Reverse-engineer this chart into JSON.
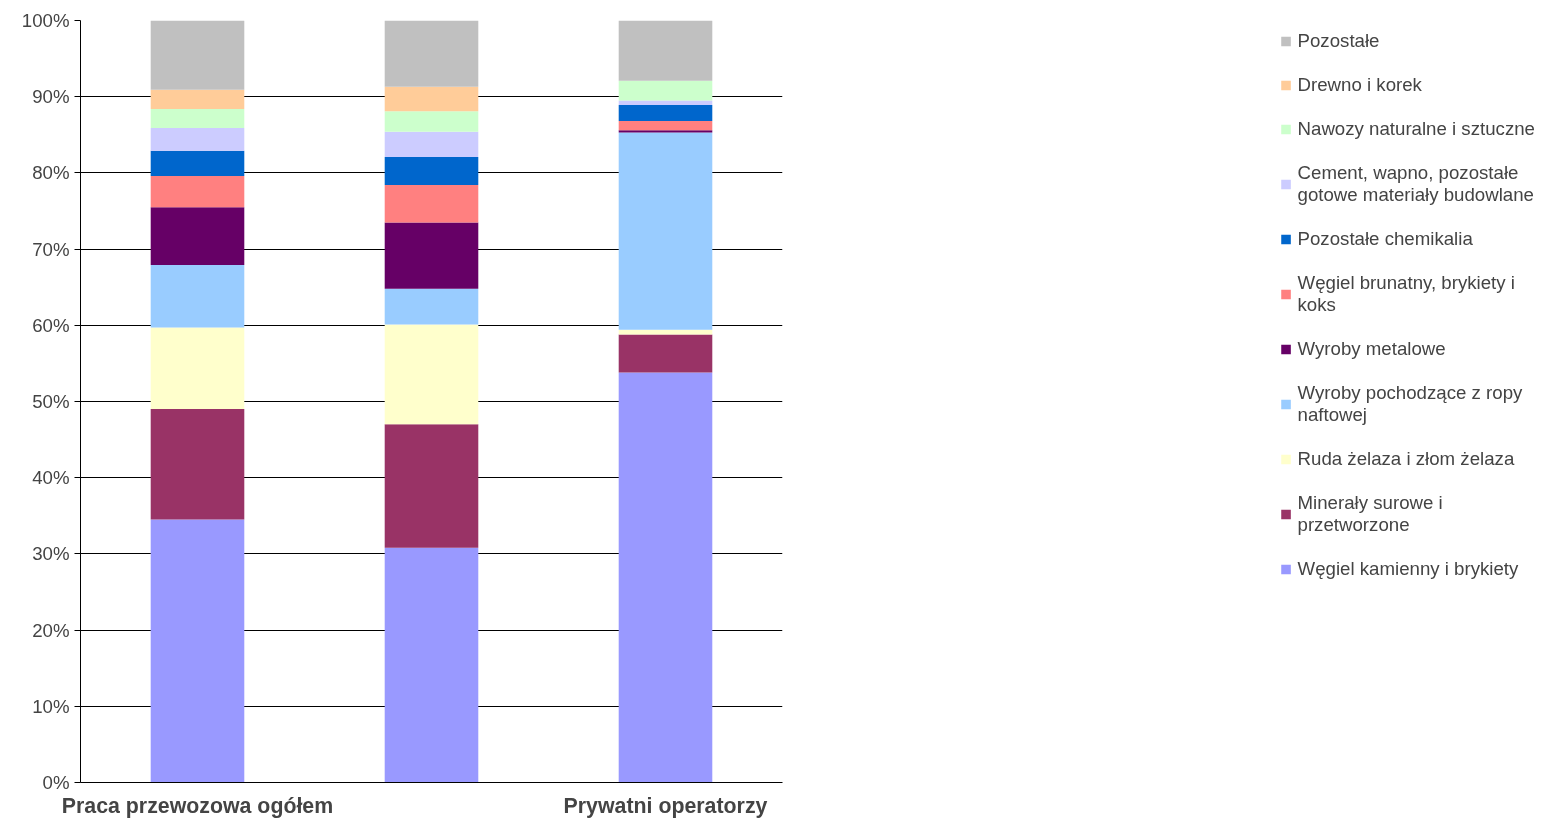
{
  "chart_data": {
    "type": "bar",
    "stacked": true,
    "categories": [
      "Praca przewozowa ogółem",
      null,
      "Prywatni operatorzy"
    ],
    "series": [
      {
        "name": "Węgiel kamienny i brykiety",
        "color": "#9999ff",
        "values": [
          34.5,
          30.8,
          53.8
        ]
      },
      {
        "name": "Minerały surowe i przetworzone",
        "color": "#993366",
        "values": [
          14.5,
          16.2,
          5.0
        ]
      },
      {
        "name": "Ruda żelaza i złom żelaza",
        "color": "#ffffcc",
        "values": [
          10.7,
          13.1,
          0.6
        ]
      },
      {
        "name": "Wyroby pochodzące z ropy naftowej",
        "color": "#99ccff",
        "values": [
          8.2,
          4.7,
          25.9
        ]
      },
      {
        "name": "Wyroby metalowe",
        "color": "#660066",
        "values": [
          7.6,
          8.7,
          0.3
        ]
      },
      {
        "name": "Węgiel brunatny, brykiety i koks",
        "color": "#ff8080",
        "values": [
          4.1,
          4.9,
          1.2
        ]
      },
      {
        "name": "Pozostałe chemikalia",
        "color": "#0066cc",
        "values": [
          3.3,
          3.7,
          2.1
        ]
      },
      {
        "name": "Cement, wapno, pozostałe gotowe materiały budowlane",
        "color": "#ccccff",
        "values": [
          3.0,
          3.3,
          0.6
        ]
      },
      {
        "name": "Nawozy naturalne i sztuczne",
        "color": "#ccffcc",
        "values": [
          2.5,
          2.7,
          2.6
        ]
      },
      {
        "name": "Drewno i korek",
        "color": "#ffcc99",
        "values": [
          2.5,
          3.2,
          0.0
        ]
      },
      {
        "name": "Pozostałe",
        "color": "#c0c0c0",
        "values": [
          9.1,
          8.7,
          7.9
        ]
      }
    ],
    "ylim": [
      0,
      100
    ],
    "yticks": [
      {
        "value": 0,
        "label": "0%"
      },
      {
        "value": 10,
        "label": "10%"
      },
      {
        "value": 20,
        "label": "20%"
      },
      {
        "value": 30,
        "label": "30%"
      },
      {
        "value": 40,
        "label": "40%"
      },
      {
        "value": 50,
        "label": "50%"
      },
      {
        "value": 60,
        "label": "60%"
      },
      {
        "value": 70,
        "label": "70%"
      },
      {
        "value": 80,
        "label": "80%"
      },
      {
        "value": 90,
        "label": "90%"
      },
      {
        "value": 100,
        "label": "100%"
      }
    ],
    "grid": "y",
    "legend": "right"
  }
}
